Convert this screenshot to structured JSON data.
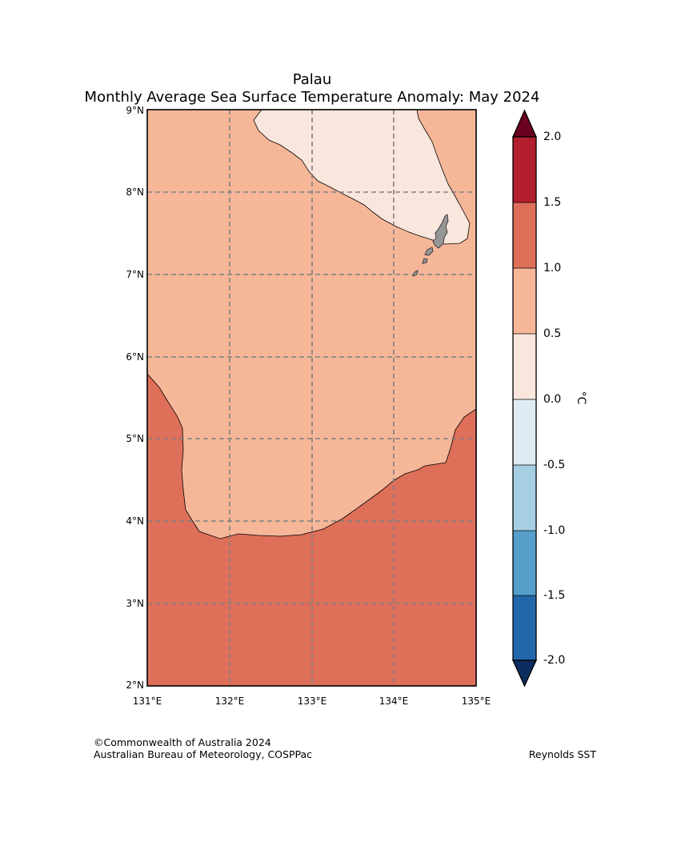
{
  "title": "Palau",
  "subtitle": "Monthly Average Sea Surface Temperature Anomaly: May 2024",
  "map": {
    "lon_range": [
      131,
      135
    ],
    "lat_range": [
      2,
      9
    ],
    "lon_ticks": [
      "131°E",
      "132°E",
      "133°E",
      "134°E",
      "135°E"
    ],
    "lat_ticks": [
      "9°N",
      "8°N",
      "7°N",
      "6°N",
      "5°N",
      "4°N",
      "3°N",
      "2°N"
    ],
    "gridlines": "dashed",
    "anomaly_zones": [
      {
        "range": "0.0 to 0.5",
        "color": "#f9e6dc",
        "region": "north-east"
      },
      {
        "range": "0.5 to 1.0",
        "color": "#f6b799",
        "region": "central"
      },
      {
        "range": "1.0 to 1.5",
        "color": "#de6f59",
        "region": "south"
      }
    ],
    "land_color": "#969696",
    "land_name": "palau-islands"
  },
  "colorbar": {
    "unit": "°C",
    "levels": [
      "2.0",
      "1.5",
      "1.0",
      "0.5",
      "0.0",
      "-0.5",
      "-1.0",
      "-1.5",
      "-2.0"
    ],
    "colors": [
      "#b31f2f",
      "#de6f59",
      "#f6b799",
      "#f9e6dc",
      "#dfebf2",
      "#a7cfe4",
      "#569fcb",
      "#2367ab"
    ],
    "over_color": "#6a0121",
    "under_color": "#0c2e5f"
  },
  "footer": {
    "copyright": "©Commonwealth of Australia 2024",
    "agency": "Australian Bureau of Meteorology, COSPPac",
    "source": "Reynolds SST"
  }
}
